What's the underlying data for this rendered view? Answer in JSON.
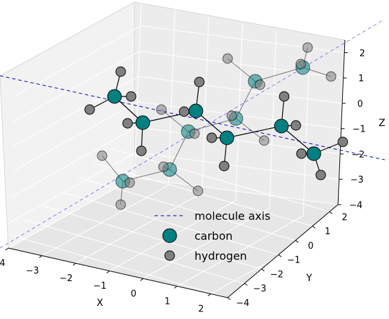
{
  "chart_data": {
    "type": "scatter",
    "projection": "3d",
    "xlabel": "X",
    "ylabel": "Y",
    "zlabel": "Z",
    "xlim": [
      -4,
      2.5
    ],
    "ylim": [
      -4,
      2.5
    ],
    "zlim": [
      -4,
      2.5
    ],
    "xticks": [
      "−4",
      "−3",
      "−2",
      "−1",
      "0",
      "1",
      "2"
    ],
    "yticks": [
      "−4",
      "−3",
      "−2",
      "−1",
      "0",
      "1",
      "2"
    ],
    "zticks": [
      "−4",
      "−3",
      "−2",
      "−1",
      "0",
      "1",
      "2"
    ],
    "grid": true,
    "legend_position": "lower-center",
    "legend": [
      {
        "label": "molecule axis",
        "kind": "dashed-line",
        "color": "#0000cc"
      },
      {
        "label": "carbon",
        "kind": "marker",
        "color": "#008080"
      },
      {
        "label": "hydrogen",
        "kind": "marker",
        "color": "#808080"
      }
    ],
    "colors": {
      "carbon": "#008080",
      "hydrogen": "#808080",
      "axis": "#0000cc",
      "bond": "#000000"
    },
    "note_atoms_in_screen_projection": true,
    "carbons": [
      {
        "id": "c1",
        "sx": 166,
        "sy": 140,
        "depth": 0
      },
      {
        "id": "c2",
        "sx": 207,
        "sy": 178,
        "depth": 0
      },
      {
        "id": "c3",
        "sx": 284,
        "sy": 161,
        "depth": 0
      },
      {
        "id": "c4",
        "sx": 329,
        "sy": 200,
        "depth": 0
      },
      {
        "id": "c5",
        "sx": 408,
        "sy": 183,
        "depth": 0
      },
      {
        "id": "c6",
        "sx": 455,
        "sy": 223,
        "depth": 0
      },
      {
        "id": "c7",
        "sx": 178,
        "sy": 263,
        "depth": 1
      },
      {
        "id": "c8",
        "sx": 246,
        "sy": 246,
        "depth": 1
      },
      {
        "id": "c9",
        "sx": 273,
        "sy": 191,
        "depth": 1
      },
      {
        "id": "c10",
        "sx": 342,
        "sy": 172,
        "depth": 1
      },
      {
        "id": "c11",
        "sx": 370,
        "sy": 118,
        "depth": 1
      },
      {
        "id": "c12",
        "sx": 439,
        "sy": 98,
        "depth": 1
      }
    ],
    "hydrogens": [
      {
        "id": "h1",
        "sx": 175,
        "sy": 104,
        "depth": 0
      },
      {
        "id": "h2",
        "sx": 190,
        "sy": 140,
        "depth": 0
      },
      {
        "id": "h3",
        "sx": 130,
        "sy": 159,
        "depth": 0
      },
      {
        "id": "h4",
        "sx": 185,
        "sy": 179,
        "depth": 0
      },
      {
        "id": "h5",
        "sx": 205,
        "sy": 219,
        "depth": 0
      },
      {
        "id": "h6",
        "sx": 289,
        "sy": 119,
        "depth": 0
      },
      {
        "id": "h7",
        "sx": 267,
        "sy": 162,
        "depth": 0
      },
      {
        "id": "h8",
        "sx": 307,
        "sy": 200,
        "depth": 0
      },
      {
        "id": "h9",
        "sx": 325,
        "sy": 241,
        "depth": 0
      },
      {
        "id": "h10",
        "sx": 412,
        "sy": 140,
        "depth": 0
      },
      {
        "id": "h11",
        "sx": 429,
        "sy": 182,
        "depth": 0
      },
      {
        "id": "h12",
        "sx": 437,
        "sy": 223,
        "depth": 0
      },
      {
        "id": "h13",
        "sx": 497,
        "sy": 206,
        "depth": 0
      },
      {
        "id": "h14",
        "sx": 465,
        "sy": 254,
        "depth": 0
      },
      {
        "id": "h15",
        "sx": 148,
        "sy": 226,
        "depth": 1
      },
      {
        "id": "h16",
        "sx": 188,
        "sy": 265,
        "depth": 1
      },
      {
        "id": "h17",
        "sx": 175,
        "sy": 297,
        "depth": 1
      },
      {
        "id": "h18",
        "sx": 237,
        "sy": 242,
        "depth": 1
      },
      {
        "id": "h19",
        "sx": 287,
        "sy": 277,
        "depth": 1
      },
      {
        "id": "h20",
        "sx": 234,
        "sy": 159,
        "depth": 1
      },
      {
        "id": "h21",
        "sx": 282,
        "sy": 194,
        "depth": 1
      },
      {
        "id": "h22",
        "sx": 336,
        "sy": 168,
        "depth": 1
      },
      {
        "id": "h23",
        "sx": 383,
        "sy": 204,
        "depth": 1
      },
      {
        "id": "h24",
        "sx": 330,
        "sy": 85,
        "depth": 1
      },
      {
        "id": "h25",
        "sx": 377,
        "sy": 123,
        "depth": 1
      },
      {
        "id": "h26",
        "sx": 446,
        "sy": 69,
        "depth": 1
      },
      {
        "id": "h27",
        "sx": 436,
        "sy": 93,
        "depth": 1
      },
      {
        "id": "h28",
        "sx": 480,
        "sy": 111,
        "depth": 1
      }
    ],
    "bonds": [
      [
        "c1",
        "c2"
      ],
      [
        "c2",
        "c3"
      ],
      [
        "c3",
        "c4"
      ],
      [
        "c4",
        "c5"
      ],
      [
        "c5",
        "c6"
      ],
      [
        "c1",
        "h1"
      ],
      [
        "c1",
        "h2"
      ],
      [
        "c1",
        "h3"
      ],
      [
        "c2",
        "h4"
      ],
      [
        "c2",
        "h5"
      ],
      [
        "c3",
        "h6"
      ],
      [
        "c3",
        "h7"
      ],
      [
        "c4",
        "h8"
      ],
      [
        "c4",
        "h9"
      ],
      [
        "c5",
        "h10"
      ],
      [
        "c5",
        "h11"
      ],
      [
        "c6",
        "h12"
      ],
      [
        "c6",
        "h13"
      ],
      [
        "c6",
        "h14"
      ],
      [
        "c7",
        "c8"
      ],
      [
        "c8",
        "c9"
      ],
      [
        "c9",
        "c10"
      ],
      [
        "c10",
        "c11"
      ],
      [
        "c11",
        "c12"
      ],
      [
        "c7",
        "h15"
      ],
      [
        "c7",
        "h16"
      ],
      [
        "c7",
        "h17"
      ],
      [
        "c8",
        "h18"
      ],
      [
        "c8",
        "h19"
      ],
      [
        "c9",
        "h20"
      ],
      [
        "c9",
        "h21"
      ],
      [
        "c10",
        "h22"
      ],
      [
        "c10",
        "h23"
      ],
      [
        "c11",
        "h24"
      ],
      [
        "c11",
        "h25"
      ],
      [
        "c12",
        "h26"
      ],
      [
        "c12",
        "h27"
      ],
      [
        "c12",
        "h28"
      ]
    ]
  }
}
